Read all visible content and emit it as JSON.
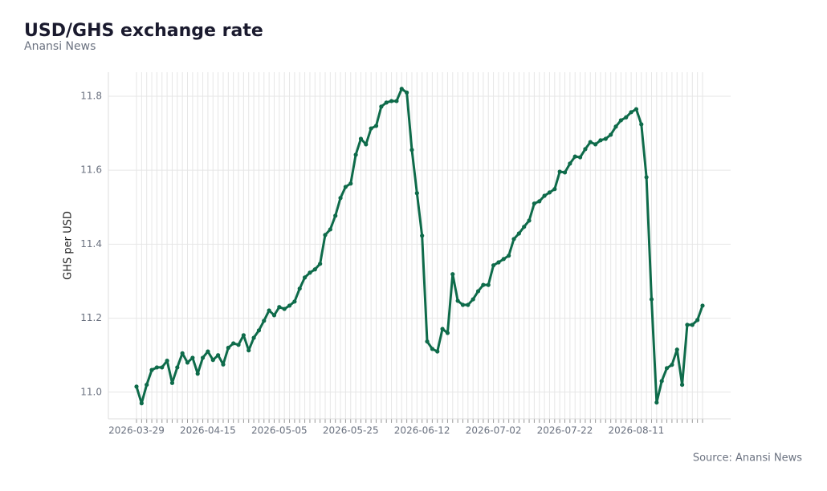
{
  "chart_data": {
    "type": "line",
    "title": "USD/GHS exchange rate",
    "subtitle": "Anansi News",
    "y_label": "GHS per USD",
    "source": "Source: Anansi News",
    "color": "#0e6b4a",
    "grid": true,
    "categories": [
      "2026-03-29",
      null,
      null,
      null,
      null,
      null,
      null,
      null,
      null,
      null,
      null,
      null,
      null,
      null,
      "2026-04-15",
      null,
      null,
      null,
      null,
      null,
      null,
      null,
      null,
      null,
      null,
      null,
      null,
      null,
      "2026-05-05",
      null,
      null,
      null,
      null,
      null,
      null,
      null,
      null,
      null,
      null,
      null,
      null,
      null,
      "2026-05-25",
      null,
      null,
      null,
      null,
      null,
      null,
      null,
      null,
      null,
      null,
      null,
      null,
      null,
      "2026-06-12",
      null,
      null,
      null,
      null,
      null,
      null,
      null,
      null,
      null,
      null,
      null,
      null,
      null,
      "2026-07-02",
      null,
      null,
      null,
      null,
      null,
      null,
      null,
      null,
      null,
      null,
      null,
      null,
      null,
      "2026-07-22",
      null,
      null,
      null,
      null,
      null,
      null,
      null,
      null,
      null,
      null,
      null,
      null,
      null,
      "2026-08-11",
      null,
      null,
      null,
      null,
      null,
      null,
      null,
      null,
      null,
      null,
      null,
      null,
      null
    ],
    "values": [
      11.015,
      10.97,
      11.02,
      11.06,
      11.067,
      11.067,
      11.085,
      11.025,
      11.067,
      11.105,
      11.08,
      11.093,
      11.05,
      11.093,
      11.11,
      11.087,
      11.1,
      11.075,
      11.12,
      11.132,
      11.128,
      11.154,
      11.113,
      11.147,
      11.167,
      11.193,
      11.221,
      11.208,
      11.23,
      11.225,
      11.234,
      11.245,
      11.28,
      11.31,
      11.323,
      11.332,
      11.347,
      11.425,
      11.44,
      11.477,
      11.525,
      11.555,
      11.564,
      11.642,
      11.685,
      11.67,
      11.713,
      11.72,
      11.772,
      11.783,
      11.787,
      11.787,
      11.82,
      11.81,
      11.655,
      11.538,
      11.423,
      11.137,
      11.117,
      11.11,
      11.171,
      11.16,
      11.319,
      11.247,
      11.236,
      11.236,
      11.251,
      11.273,
      11.29,
      11.29,
      11.343,
      11.351,
      11.36,
      11.369,
      11.414,
      11.429,
      11.447,
      11.464,
      11.51,
      11.516,
      11.531,
      11.54,
      11.549,
      11.596,
      11.594,
      11.618,
      11.637,
      11.635,
      11.657,
      11.676,
      11.67,
      11.681,
      11.685,
      11.696,
      11.718,
      11.735,
      11.743,
      11.757,
      11.765,
      11.724,
      11.581,
      11.251,
      10.972,
      11.03,
      11.065,
      11.074,
      11.115,
      11.02,
      11.182,
      11.182,
      11.195,
      11.234
    ],
    "ylim": [
      10.928,
      11.865
    ],
    "yticks": [
      {
        "value": 11,
        "label": "11.0"
      },
      11.2,
      11.4,
      11.6,
      11.8
    ]
  }
}
